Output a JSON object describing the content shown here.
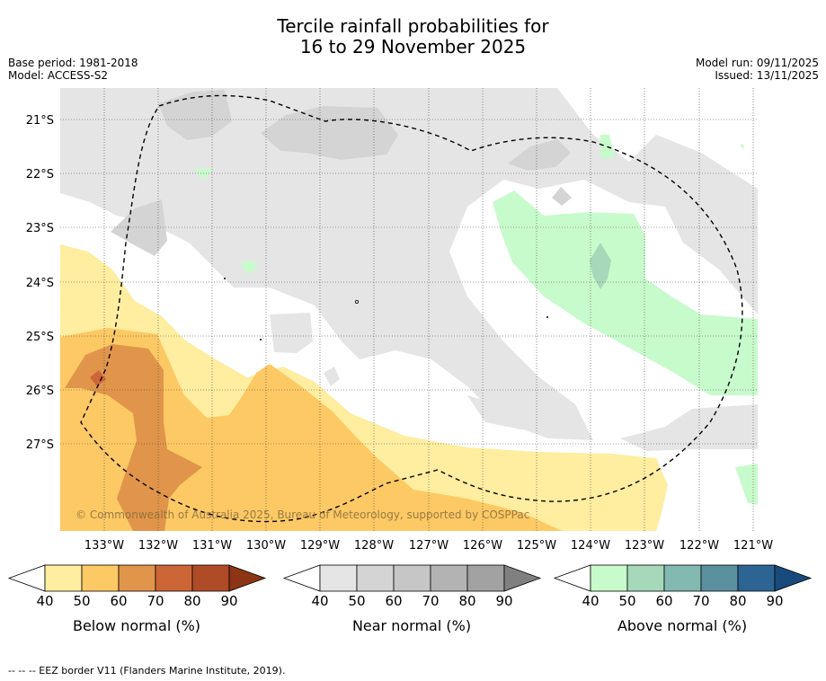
{
  "title": {
    "line1": "Tercile rainfall probabilities for",
    "line2": "16 to 29 November 2025"
  },
  "meta": {
    "base_period": "Base period: 1981-2018",
    "model": "Model: ACCESS-S2",
    "model_run": "Model run: 09/11/2025",
    "issued": "Issued: 13/11/2025"
  },
  "map": {
    "lat_labels": [
      "21°S",
      "22°S",
      "23°S",
      "24°S",
      "25°S",
      "26°S",
      "27°S"
    ],
    "lon_labels": [
      "133°W",
      "132°W",
      "131°W",
      "130°W",
      "129°W",
      "128°W",
      "127°W",
      "126°W",
      "125°W",
      "124°W",
      "123°W",
      "122°W",
      "121°W"
    ],
    "copyright": "© Commonwealth of Australia 2025, Bureau of Meteorology, supported by COSPPac",
    "colors": {
      "below": [
        "#ffeda0",
        "#fdc965",
        "#e0954a",
        "#cd6636",
        "#b04b28",
        "#8c3515"
      ],
      "near": [
        "#e5e5e5",
        "#d4d4d4",
        "#c6c6c6",
        "#b3b3b3",
        "#a2a2a2",
        "#808080"
      ],
      "above": [
        "#c8fbcc",
        "#a5d9b9",
        "#82b9b0",
        "#5b909e",
        "#2c6494",
        "#194a7c"
      ]
    }
  },
  "colorbars": {
    "ticks": [
      "40",
      "50",
      "60",
      "70",
      "80",
      "90"
    ],
    "below_label": "Below normal (%)",
    "near_label": "Near normal (%)",
    "above_label": "Above normal (%)"
  },
  "footnote": "--  --  -- EEZ border V11 (Flanders Marine Institute, 2019)."
}
